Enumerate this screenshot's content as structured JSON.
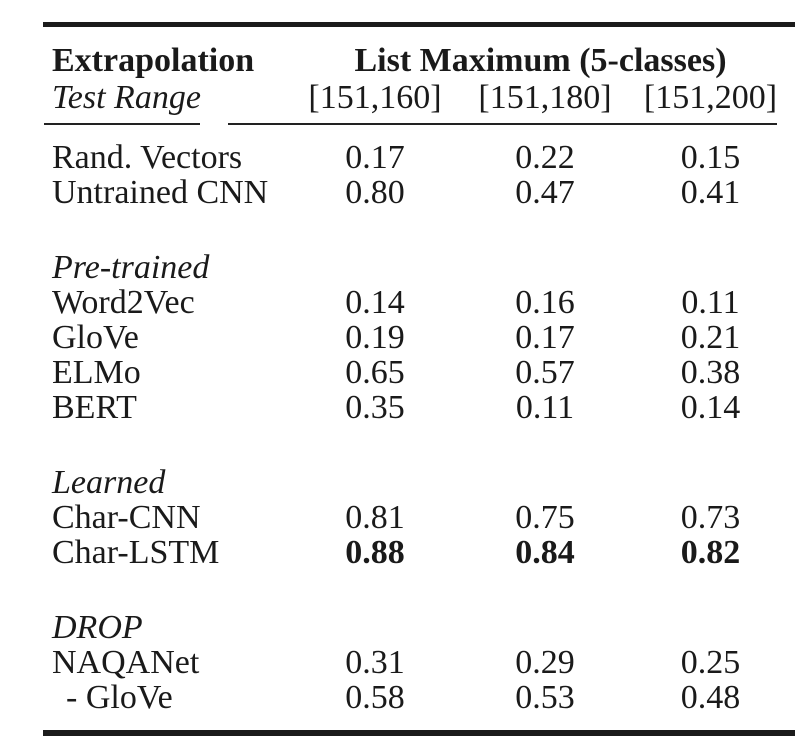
{
  "table": {
    "header": {
      "col1_line1": "Extrapolation",
      "col1_line2": "Test Range",
      "group_label": "List Maximum (5-classes)",
      "columns": [
        "[151,160]",
        "[151,180]",
        "[151,200]"
      ]
    },
    "rows": [
      {
        "type": "data",
        "label": "Rand. Vectors",
        "values": [
          "0.17",
          "0.22",
          "0.15"
        ]
      },
      {
        "type": "data",
        "label": "Untrained CNN",
        "values": [
          "0.80",
          "0.47",
          "0.41"
        ]
      },
      {
        "type": "section",
        "label": "Pre-trained"
      },
      {
        "type": "data",
        "label": "Word2Vec",
        "values": [
          "0.14",
          "0.16",
          "0.11"
        ]
      },
      {
        "type": "data",
        "label": "GloVe",
        "values": [
          "0.19",
          "0.17",
          "0.21"
        ]
      },
      {
        "type": "data",
        "label": "ELMo",
        "values": [
          "0.65",
          "0.57",
          "0.38"
        ]
      },
      {
        "type": "data",
        "label": "BERT",
        "values": [
          "0.35",
          "0.11",
          "0.14"
        ]
      },
      {
        "type": "section",
        "label": "Learned"
      },
      {
        "type": "data",
        "label": "Char-CNN",
        "values": [
          "0.81",
          "0.75",
          "0.73"
        ]
      },
      {
        "type": "data",
        "label": "Char-LSTM",
        "values": [
          "0.88",
          "0.84",
          "0.82"
        ],
        "bold": true
      },
      {
        "type": "section",
        "label": "DROP"
      },
      {
        "type": "data",
        "label": "NAQANet",
        "values": [
          "0.31",
          "0.29",
          "0.25"
        ]
      },
      {
        "type": "data",
        "label": "- GloVe",
        "values": [
          "0.58",
          "0.53",
          "0.48"
        ],
        "indent": true
      }
    ],
    "colors": {
      "text": "#1a1a1a",
      "rule": "#1b1b1b",
      "background": "#ffffff"
    }
  },
  "chart_data": {
    "type": "table",
    "title": "List Maximum (5-classes)",
    "row_header": [
      "Extrapolation",
      "Test Range"
    ],
    "columns": [
      "[151,160]",
      "[151,180]",
      "[151,200]"
    ],
    "rows": [
      {
        "section": null,
        "label": "Rand. Vectors",
        "values": [
          0.17,
          0.22,
          0.15
        ]
      },
      {
        "section": null,
        "label": "Untrained CNN",
        "values": [
          0.8,
          0.47,
          0.41
        ]
      },
      {
        "section": "Pre-trained",
        "label": "Word2Vec",
        "values": [
          0.14,
          0.16,
          0.11
        ]
      },
      {
        "section": "Pre-trained",
        "label": "GloVe",
        "values": [
          0.19,
          0.17,
          0.21
        ]
      },
      {
        "section": "Pre-trained",
        "label": "ELMo",
        "values": [
          0.65,
          0.57,
          0.38
        ]
      },
      {
        "section": "Pre-trained",
        "label": "BERT",
        "values": [
          0.35,
          0.11,
          0.14
        ]
      },
      {
        "section": "Learned",
        "label": "Char-CNN",
        "values": [
          0.81,
          0.75,
          0.73
        ]
      },
      {
        "section": "Learned",
        "label": "Char-LSTM",
        "values": [
          0.88,
          0.84,
          0.82
        ],
        "bold": true
      },
      {
        "section": "DROP",
        "label": "NAQANet",
        "values": [
          0.31,
          0.29,
          0.25
        ]
      },
      {
        "section": "DROP",
        "label": "- GloVe",
        "values": [
          0.58,
          0.53,
          0.48
        ]
      }
    ]
  }
}
